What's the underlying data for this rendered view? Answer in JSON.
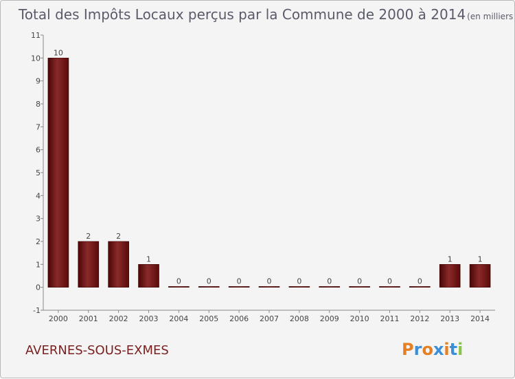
{
  "chart_data": {
    "type": "bar",
    "title": "Total des Impôts Locaux perçus par la Commune de 2000 à 2014",
    "subtitle": "(en milliers d'€)",
    "categories": [
      "2000",
      "2001",
      "2002",
      "2003",
      "2004",
      "2005",
      "2006",
      "2007",
      "2008",
      "2009",
      "2010",
      "2011",
      "2012",
      "2013",
      "2014"
    ],
    "values": [
      10,
      2,
      2,
      1,
      0,
      0,
      0,
      0,
      0,
      0,
      0,
      0,
      0,
      1,
      1
    ],
    "ylim": [
      -1,
      11
    ],
    "yticks": [
      -1,
      0,
      1,
      2,
      3,
      4,
      5,
      6,
      7,
      8,
      9,
      10,
      11
    ],
    "xlabel": "",
    "ylabel": "",
    "grid": false,
    "bar_color": "#6e1212"
  },
  "footer": {
    "commune": "AVERNES-SOUS-EXMES",
    "logo_letters": [
      "P",
      "r",
      "o",
      "x",
      "i",
      "t",
      "i"
    ],
    "logo_colors": [
      "#e67e22",
      "#3a8fd8",
      "#e67e22",
      "#3a8fd8",
      "#e67e22",
      "#3a8fd8",
      "#8bc34a"
    ]
  }
}
